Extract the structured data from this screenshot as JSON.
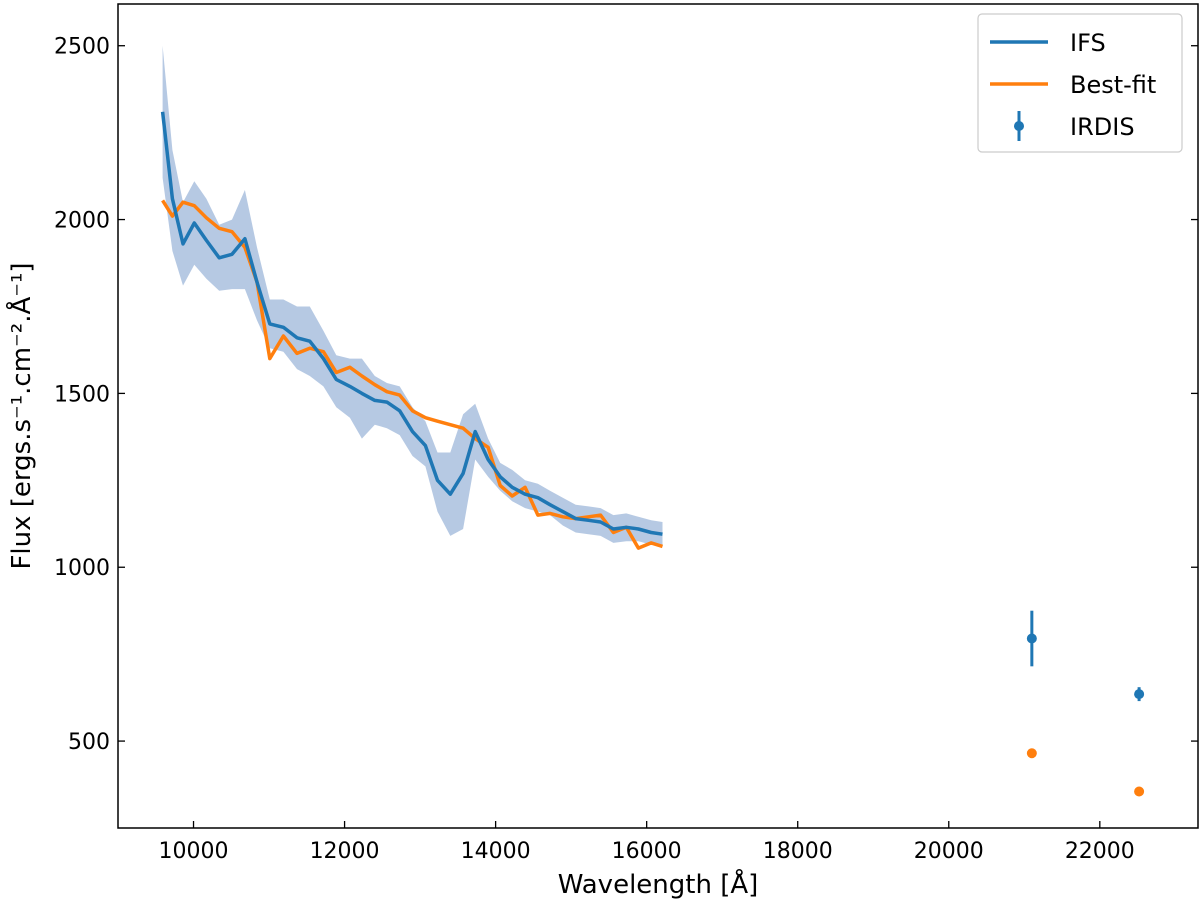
{
  "chart_data": {
    "type": "line",
    "xlabel": "Wavelength [Å]",
    "ylabel": "Flux [ergs.s⁻¹.cm⁻².Å⁻¹]",
    "xlim": [
      9000,
      23300
    ],
    "ylim": [
      250,
      2620
    ],
    "xticks": [
      10000,
      12000,
      14000,
      16000,
      18000,
      20000,
      22000
    ],
    "yticks": [
      500,
      1000,
      1500,
      2000,
      2500
    ],
    "grid": false,
    "legend_position": "top-right",
    "colors": {
      "ifs": "#1f77b4",
      "bestfit": "#ff7f0e",
      "band": "#aec3e0"
    },
    "series": [
      {
        "name": "IFS",
        "kind": "line",
        "x": [
          9590,
          9720,
          9860,
          10010,
          10170,
          10340,
          10510,
          10680,
          10840,
          11010,
          11190,
          11370,
          11540,
          11720,
          11890,
          12070,
          12230,
          12400,
          12560,
          12730,
          12900,
          13070,
          13230,
          13400,
          13570,
          13730,
          13900,
          14060,
          14220,
          14390,
          14560,
          14720,
          14890,
          15060,
          15230,
          15390,
          15560,
          15730,
          15890,
          16060,
          16210
        ],
        "y": [
          2310,
          2060,
          1930,
          1990,
          1940,
          1890,
          1900,
          1945,
          1820,
          1700,
          1690,
          1660,
          1650,
          1600,
          1540,
          1520,
          1500,
          1480,
          1475,
          1450,
          1390,
          1350,
          1250,
          1210,
          1270,
          1390,
          1310,
          1260,
          1230,
          1210,
          1200,
          1180,
          1160,
          1140,
          1135,
          1130,
          1110,
          1115,
          1110,
          1100,
          1095
        ],
        "err_low": [
          2120,
          1910,
          1810,
          1870,
          1830,
          1795,
          1800,
          1800,
          1710,
          1630,
          1620,
          1570,
          1550,
          1520,
          1460,
          1430,
          1370,
          1410,
          1400,
          1380,
          1320,
          1290,
          1160,
          1090,
          1110,
          1310,
          1260,
          1220,
          1190,
          1170,
          1160,
          1150,
          1120,
          1100,
          1095,
          1090,
          1070,
          1075,
          1075,
          1065,
          1060
        ],
        "err_high": [
          2500,
          2200,
          2050,
          2110,
          2060,
          1985,
          2000,
          2085,
          1920,
          1770,
          1770,
          1750,
          1750,
          1680,
          1610,
          1600,
          1600,
          1550,
          1530,
          1520,
          1460,
          1420,
          1330,
          1330,
          1440,
          1470,
          1370,
          1300,
          1280,
          1250,
          1240,
          1220,
          1200,
          1180,
          1175,
          1170,
          1150,
          1155,
          1145,
          1135,
          1130
        ]
      },
      {
        "name": "Best-fit",
        "kind": "line",
        "x": [
          9590,
          9720,
          9860,
          10010,
          10170,
          10340,
          10510,
          10680,
          10840,
          11010,
          11190,
          11370,
          11540,
          11720,
          11890,
          12070,
          12230,
          12400,
          12560,
          12730,
          12900,
          13070,
          13230,
          13400,
          13570,
          13730,
          13900,
          14060,
          14220,
          14390,
          14560,
          14720,
          14890,
          15060,
          15230,
          15390,
          15560,
          15730,
          15890,
          16060,
          16210
        ],
        "y": [
          2055,
          2010,
          2050,
          2040,
          2005,
          1975,
          1965,
          1920,
          1820,
          1600,
          1665,
          1615,
          1630,
          1620,
          1560,
          1575,
          1550,
          1525,
          1505,
          1495,
          1450,
          1430,
          1420,
          1410,
          1400,
          1370,
          1345,
          1235,
          1205,
          1230,
          1150,
          1155,
          1145,
          1140,
          1145,
          1150,
          1100,
          1115,
          1055,
          1070,
          1060
        ]
      },
      {
        "name": "IRDIS",
        "kind": "errorbar",
        "x": [
          21100,
          22520
        ],
        "y": [
          795,
          635
        ],
        "err": [
          80,
          20
        ]
      },
      {
        "name": "",
        "kind": "points",
        "x": [
          21100,
          22520
        ],
        "y": [
          465,
          355
        ]
      }
    ]
  }
}
